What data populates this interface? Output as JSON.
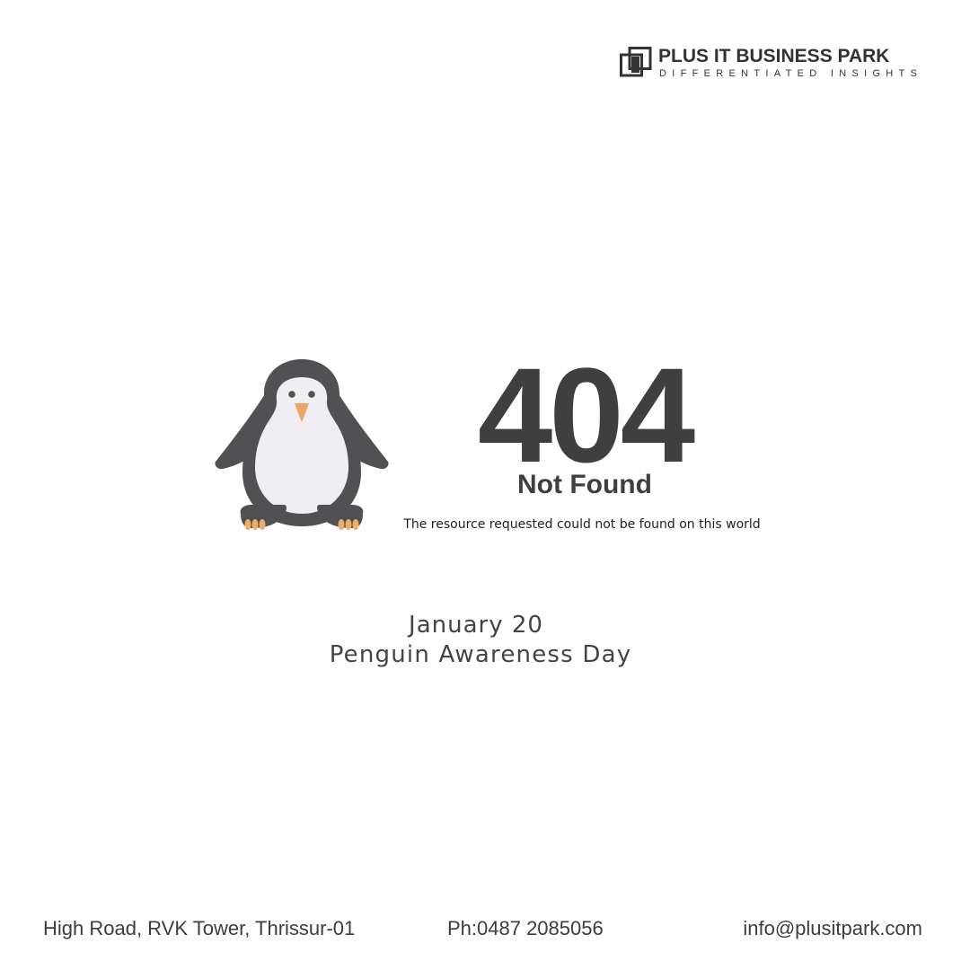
{
  "brand": {
    "name": "PLUS IT BUSINESS PARK",
    "tagline": "DIFFERENTIATED INSIGHTS",
    "logo_icon": "overlapping-squares-icon",
    "color": "#333333"
  },
  "illustration": {
    "icon": "penguin-icon",
    "colors": {
      "body": "#505153",
      "belly": "#efeff1",
      "beak": "#e8a766",
      "feet": "#f0ad6a"
    }
  },
  "error": {
    "code": "404",
    "title": "Not Found",
    "message": "The resource requested could not be found on this world"
  },
  "event": {
    "date": "January 20",
    "name": "Penguin Awareness Day"
  },
  "footer": {
    "address": "High Road, RVK Tower, Thrissur-01",
    "phone": "Ph:0487 2085056",
    "email": "info@plusitpark.com"
  }
}
